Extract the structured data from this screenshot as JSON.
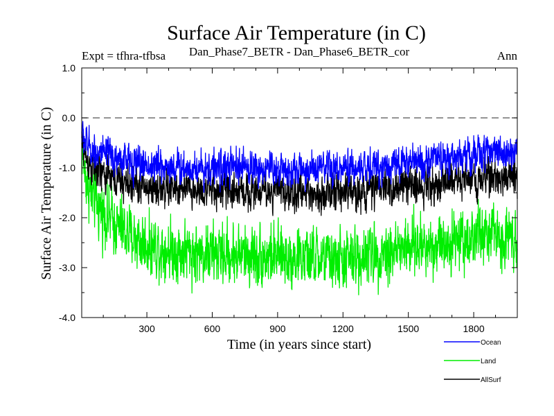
{
  "chart_data": {
    "type": "line",
    "title": "Surface Air Temperature (in C)",
    "subtitle_left": "Expt = tfhra-tfbsa",
    "subtitle_center": "Dan_Phase7_BETR - Dan_Phase6_BETR_cor",
    "subtitle_right": "Ann",
    "xlabel": "Time (in years since start)",
    "ylabel": "Surface Air Temperature (in C)",
    "xlim": [
      1,
      2000
    ],
    "ylim": [
      -4.0,
      1.0
    ],
    "x_ticks": [
      300,
      600,
      900,
      1200,
      1500,
      1800
    ],
    "x_tick_labels": [
      "300",
      "600",
      "900",
      "1200",
      "1500",
      "1800"
    ],
    "y_ticks": [
      -4.0,
      -3.0,
      -2.0,
      -1.0,
      0.0,
      1.0
    ],
    "y_tick_labels": [
      "-4.0",
      "-3.0",
      "-2.0",
      "-1.0",
      "0.0",
      "1.0"
    ],
    "reference_line": {
      "y": 0.0,
      "style": "dashed",
      "color": "#555555"
    },
    "legend_position": "bottom-right",
    "series": [
      {
        "name": "Land",
        "color": "#00ee00",
        "noise": 0.28,
        "keyframes": {
          "x": [
            1,
            20,
            50,
            100,
            200,
            300,
            500,
            800,
            1000,
            1200,
            1300,
            1500,
            1700,
            1850,
            2000
          ],
          "y": [
            -0.6,
            -1.2,
            -1.6,
            -1.9,
            -2.3,
            -2.55,
            -2.7,
            -2.75,
            -2.8,
            -2.85,
            -2.75,
            -2.6,
            -2.45,
            -2.35,
            -2.35
          ]
        }
      },
      {
        "name": "AllSurf",
        "color": "#000000",
        "noise": 0.17,
        "keyframes": {
          "x": [
            1,
            20,
            50,
            100,
            200,
            300,
            500,
            800,
            1000,
            1200,
            1300,
            1500,
            1700,
            1850,
            2000
          ],
          "y": [
            -0.45,
            -0.8,
            -1.0,
            -1.15,
            -1.3,
            -1.4,
            -1.45,
            -1.45,
            -1.5,
            -1.5,
            -1.45,
            -1.35,
            -1.25,
            -1.2,
            -1.15
          ]
        }
      },
      {
        "name": "Ocean",
        "color": "#0000ff",
        "noise": 0.16,
        "keyframes": {
          "x": [
            1,
            20,
            50,
            100,
            200,
            300,
            500,
            800,
            1000,
            1200,
            1300,
            1500,
            1700,
            1850,
            2000
          ],
          "y": [
            -0.3,
            -0.5,
            -0.65,
            -0.75,
            -0.85,
            -0.95,
            -1.0,
            -1.0,
            -1.05,
            -1.05,
            -1.0,
            -0.9,
            -0.8,
            -0.7,
            -0.65
          ]
        }
      }
    ]
  },
  "legend": {
    "items": [
      {
        "name": "Ocean",
        "color": "#0000ff"
      },
      {
        "name": "Land",
        "color": "#00ee00"
      },
      {
        "name": "AllSurf",
        "color": "#000000"
      }
    ]
  }
}
